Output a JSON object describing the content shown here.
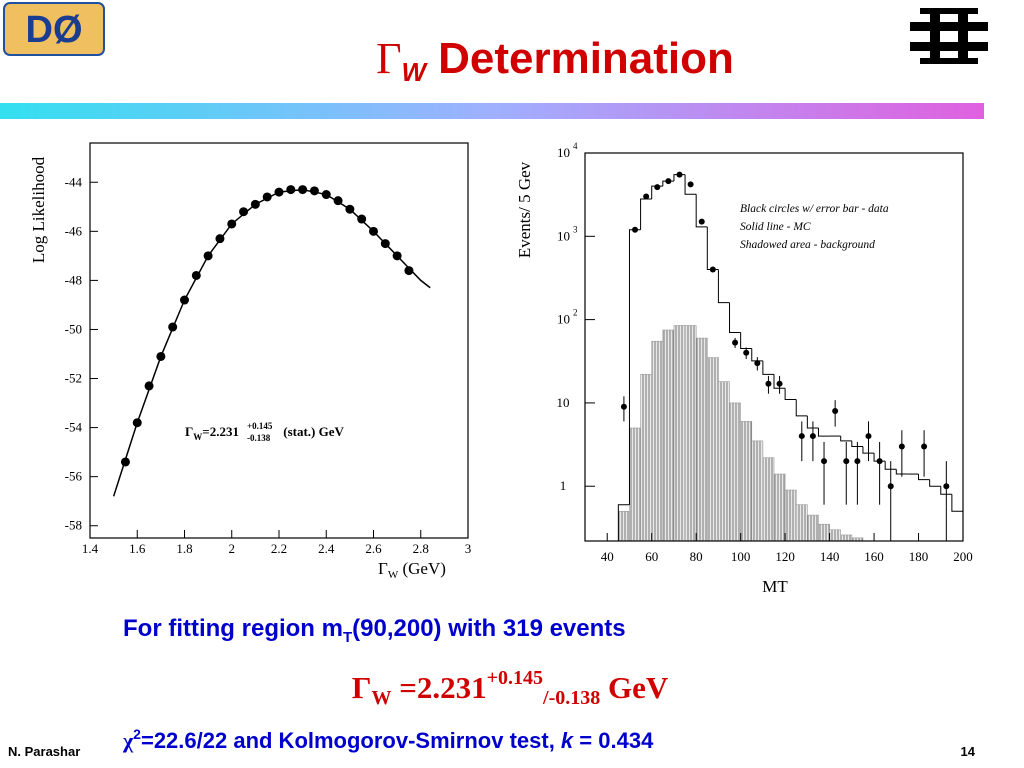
{
  "logo_text": "DØ",
  "title": {
    "symbol": "Γ",
    "subscript": "W",
    "text": "Determination"
  },
  "chart_data": [
    {
      "type": "scatter",
      "y_label": "Log Likelihood",
      "x_label": {
        "symbol": "Γ",
        "subscript": "W",
        "text": " (GeV)"
      },
      "annotation": {
        "symbol": "Γ",
        "subscript": "W",
        "text": "=2.231",
        "plus": "+0.145",
        "minus": "-0.138",
        "after": " (stat.) GeV"
      },
      "xlim": [
        1.4,
        3
      ],
      "xticks": [
        1.4,
        1.6,
        1.8,
        2,
        2.2,
        2.4,
        2.6,
        2.8,
        3
      ],
      "ylim": [
        -58.5,
        -42.4
      ],
      "yticks": [
        -44,
        -46,
        -48,
        -50,
        -52,
        -54,
        -56,
        -58
      ],
      "points": {
        "color": "#000000",
        "x": [
          1.55,
          1.6,
          1.65,
          1.7,
          1.75,
          1.8,
          1.85,
          1.9,
          1.95,
          2.0,
          2.05,
          2.1,
          2.15,
          2.2,
          2.25,
          2.3,
          2.35,
          2.4,
          2.45,
          2.5,
          2.55,
          2.6,
          2.65,
          2.7,
          2.75
        ],
        "values": [
          -55.4,
          -53.8,
          -52.3,
          -51.1,
          -49.9,
          -48.8,
          -47.8,
          -47.0,
          -46.3,
          -45.7,
          -45.2,
          -44.9,
          -44.6,
          -44.4,
          -44.3,
          -44.3,
          -44.35,
          -44.5,
          -44.75,
          -45.1,
          -45.5,
          -46.0,
          -46.5,
          -47.0,
          -47.6
        ]
      },
      "curve": {
        "color": "#000000",
        "x": [
          1.5,
          1.6,
          1.7,
          1.8,
          1.9,
          2.0,
          2.1,
          2.2,
          2.3,
          2.4,
          2.5,
          2.6,
          2.7,
          2.8,
          2.84
        ],
        "values": [
          -56.8,
          -53.8,
          -51.1,
          -48.8,
          -47.0,
          -45.7,
          -44.9,
          -44.4,
          -44.3,
          -44.5,
          -45.1,
          -46.0,
          -47.0,
          -48.0,
          -48.3
        ]
      }
    },
    {
      "type": "histogram",
      "y_label": "Events/ 5 Gev",
      "x_label": "MT",
      "log_y": true,
      "xlim": [
        30,
        200
      ],
      "xticks": [
        40,
        60,
        80,
        100,
        120,
        140,
        160,
        180,
        200
      ],
      "ylim": [
        0.22,
        10000
      ],
      "yticks": [
        1,
        10,
        {
          "value": 100,
          "label": "10",
          "exponent": "2"
        },
        {
          "value": 1000,
          "label": "10",
          "exponent": "3"
        },
        {
          "value": 10000,
          "label": "10",
          "exponent": "4"
        }
      ],
      "bins": [
        45,
        50,
        55,
        60,
        65,
        70,
        75,
        80,
        85,
        90,
        95,
        100,
        105,
        110,
        115,
        120,
        125,
        130,
        135,
        140,
        145,
        150,
        155,
        160,
        165,
        170,
        175,
        180,
        185,
        190,
        195,
        200
      ],
      "data": {
        "name": "Black circles w/ error bar - data",
        "color": "#000000",
        "x": [
          47.5,
          52.5,
          57.5,
          62.5,
          67.5,
          72.5,
          77.5,
          82.5,
          87.5,
          97.5,
          102.5,
          107.5,
          112.5,
          117.5,
          127.5,
          132.5,
          137.5,
          142.5,
          147.5,
          152.5,
          157.5,
          162.5,
          167.5,
          172.5,
          182.5,
          192.5
        ],
        "values": [
          9,
          1200,
          3000,
          3900,
          4600,
          5500,
          4200,
          1500,
          400,
          53,
          40,
          30,
          17,
          17,
          4,
          4,
          2,
          8,
          2,
          2,
          4,
          2,
          1,
          3,
          3,
          1
        ],
        "errors": [
          3,
          35,
          55,
          62,
          68,
          74,
          65,
          39,
          20,
          7.3,
          6.3,
          5.5,
          4.1,
          4.1,
          2,
          2,
          1.4,
          2.8,
          1.4,
          1.4,
          2,
          1.4,
          1,
          1.7,
          1.7,
          1
        ]
      },
      "mc": {
        "name": "Solid line - MC",
        "color": "#000000",
        "values": [
          0.6,
          1200,
          2800,
          4000,
          4600,
          5500,
          3200,
          1300,
          400,
          160,
          70,
          45,
          32,
          22,
          15,
          11,
          7,
          5,
          4,
          4,
          3.5,
          3,
          2.5,
          2,
          1.6,
          1.4,
          1.4,
          1.2,
          1,
          0.8,
          0.5
        ]
      },
      "background": {
        "name": "Shadowed area - background",
        "color": "#9a9a9a",
        "values": [
          0.5,
          5,
          22,
          55,
          75,
          85,
          85,
          60,
          35,
          18,
          10,
          6,
          3.5,
          2.2,
          1.4,
          0.9,
          0.6,
          0.45,
          0.35,
          0.3,
          0.26,
          0.24,
          0.2,
          0.2,
          0.2,
          0.2,
          0.2,
          0.2,
          0.2,
          0.2,
          0.2
        ]
      }
    }
  ],
  "fit_line": {
    "text": "For fitting region m",
    "subscript": "T",
    "after": "(90,200) with 319 events"
  },
  "result_line": {
    "symbol": "Γ",
    "subscript": "W",
    "text": " =2.231",
    "plus": "+0.145",
    "minus": "/-0.138",
    "after": " GeV"
  },
  "chi_line": {
    "symbol": "χ",
    "superscript": "2",
    "text": "=22.6/22 and Kolmogorov-Smirnov test, ",
    "k": "k",
    "after": " = 0.434"
  },
  "footer": {
    "author": "N. Parashar",
    "page": "14"
  }
}
